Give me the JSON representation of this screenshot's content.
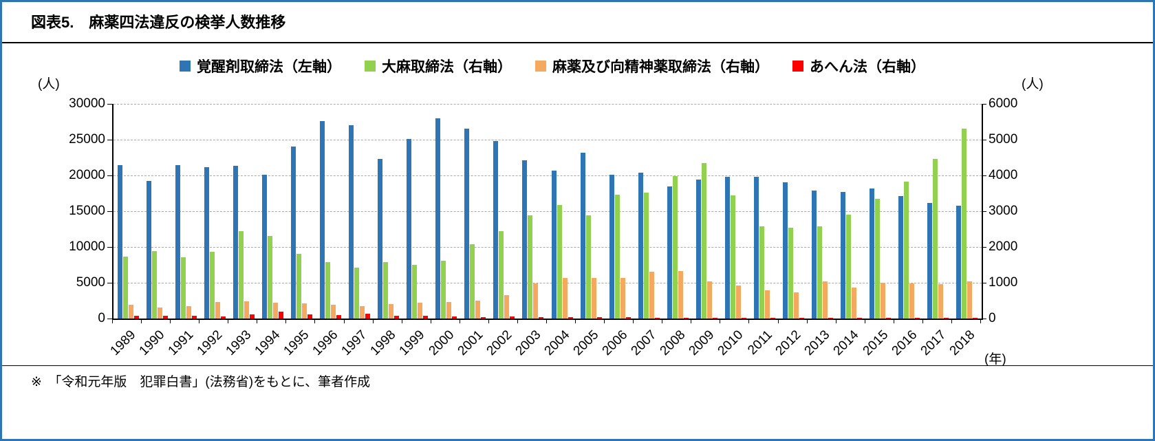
{
  "figure": {
    "title": "図表5.　麻薬四法違反の検挙人数推移",
    "left_axis_unit": "(人)",
    "right_axis_unit": "(人)",
    "x_axis_unit": "(年)",
    "footnote": "※　「令和元年版　犯罪白書」(法務省)をもとに、筆者作成"
  },
  "chart_data": {
    "type": "bar",
    "title": "麻薬四法違反の検挙人数推移",
    "grid": true,
    "legend_position": "top",
    "categories": [
      "1989",
      "1990",
      "1991",
      "1992",
      "1993",
      "1994",
      "1995",
      "1996",
      "1997",
      "1998",
      "1999",
      "2000",
      "2001",
      "2002",
      "2003",
      "2004",
      "2005",
      "2006",
      "2007",
      "2008",
      "2009",
      "2010",
      "2011",
      "2012",
      "2013",
      "2014",
      "2015",
      "2016",
      "2017",
      "2018"
    ],
    "left_axis": {
      "label": "(人)",
      "min": 0,
      "max": 30000,
      "step": 5000
    },
    "right_axis": {
      "label": "(人)",
      "min": 0,
      "max": 6000,
      "step": 1000
    },
    "series": [
      {
        "key": "stimulants",
        "name": "覚醒剤取締法（左軸）",
        "axis": "left",
        "color": "#2E75B6",
        "values": [
          21400,
          19200,
          21400,
          21200,
          21300,
          20100,
          24000,
          27600,
          27000,
          22300,
          25100,
          28000,
          26500,
          24800,
          22100,
          20700,
          23200,
          20100,
          20400,
          18500,
          19400,
          19800,
          19800,
          19000,
          17900,
          17700,
          18200,
          17100,
          16200,
          15800
        ]
      },
      {
        "key": "cannabis",
        "name": "大麻取締法（右軸）",
        "axis": "right",
        "color": "#92D050",
        "values": [
          1730,
          1890,
          1710,
          1870,
          2440,
          2310,
          1810,
          1580,
          1420,
          1580,
          1500,
          1620,
          2080,
          2440,
          2880,
          3170,
          2880,
          3460,
          3520,
          3980,
          4350,
          3440,
          2580,
          2540,
          2580,
          2900,
          3350,
          3830,
          4460,
          5310
        ]
      },
      {
        "key": "narcotics",
        "name": "麻薬及び向精神薬取締法（右軸）",
        "axis": "right",
        "color": "#F5A860",
        "values": [
          380,
          310,
          350,
          460,
          480,
          440,
          420,
          380,
          350,
          400,
          440,
          460,
          500,
          650,
          980,
          1130,
          1130,
          1130,
          1310,
          1330,
          1040,
          920,
          790,
          730,
          1040,
          870,
          1000,
          980,
          960,
          1040
        ]
      },
      {
        "key": "opium",
        "name": "あへん法（右軸）",
        "axis": "right",
        "color": "#FF0000",
        "values": [
          80,
          80,
          80,
          60,
          110,
          190,
          120,
          100,
          130,
          80,
          75,
          60,
          40,
          60,
          40,
          40,
          35,
          30,
          25,
          20,
          25,
          20,
          20,
          20,
          20,
          15,
          20,
          15,
          15,
          20
        ]
      }
    ]
  }
}
